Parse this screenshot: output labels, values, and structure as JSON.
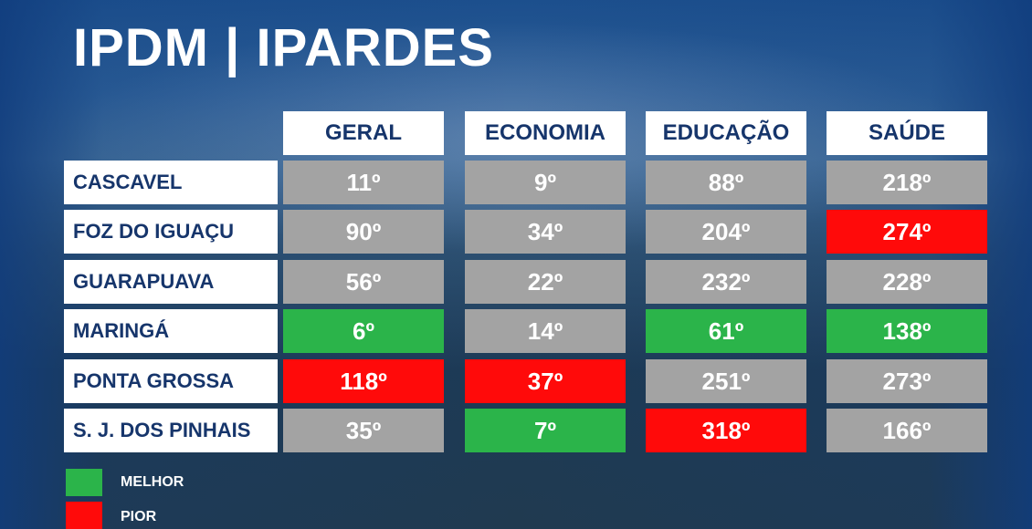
{
  "title": "IPDM | IPARDES",
  "columns": [
    "GERAL",
    "ECONOMIA",
    "EDUCAÇÃO",
    "SAÚDE"
  ],
  "rows": [
    {
      "city": "CASCAVEL",
      "values": [
        "11º",
        "9º",
        "88º",
        "218º"
      ],
      "status": [
        "neutral",
        "neutral",
        "neutral",
        "neutral"
      ]
    },
    {
      "city": "FOZ DO IGUAÇU",
      "values": [
        "90º",
        "34º",
        "204º",
        "274º"
      ],
      "status": [
        "neutral",
        "neutral",
        "neutral",
        "worst"
      ]
    },
    {
      "city": "GUARAPUAVA",
      "values": [
        "56º",
        "22º",
        "232º",
        "228º"
      ],
      "status": [
        "neutral",
        "neutral",
        "neutral",
        "neutral"
      ]
    },
    {
      "city": "MARINGÁ",
      "values": [
        "6º",
        "14º",
        "61º",
        "138º"
      ],
      "status": [
        "best",
        "neutral",
        "best",
        "best"
      ]
    },
    {
      "city": "PONTA GROSSA",
      "values": [
        "118º",
        "37º",
        "251º",
        "273º"
      ],
      "status": [
        "worst",
        "worst",
        "neutral",
        "neutral"
      ]
    },
    {
      "city": "S. J. DOS PINHAIS",
      "values": [
        "35º",
        "7º",
        "318º",
        "166º"
      ],
      "status": [
        "neutral",
        "best",
        "worst",
        "neutral"
      ]
    }
  ],
  "legend": {
    "best_label": "MELHOR",
    "worst_label": "PIOR"
  },
  "colors": {
    "best": "#2bb44a",
    "worst": "#ff0a0a",
    "neutral": "#a3a3a3",
    "header_text": "#16356b"
  }
}
